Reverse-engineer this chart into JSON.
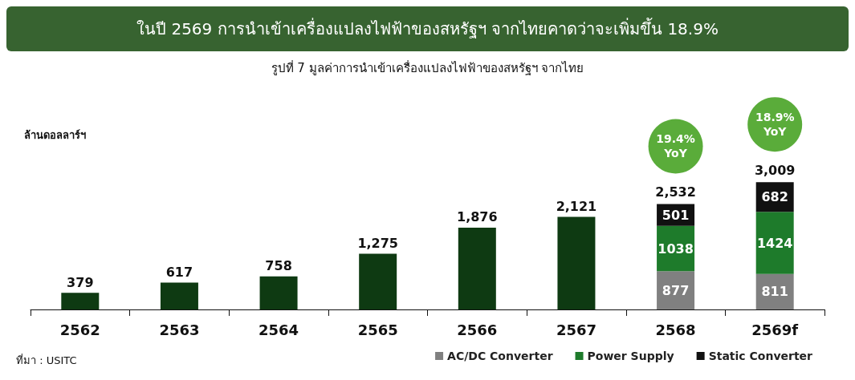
{
  "chart_data": {
    "type": "bar",
    "title": "ในปี 2569 การนำเข้าเครื่องแปลงไฟฟ้าของสหรัฐฯ จากไทยคาดว่าจะเพิ่มขึ้น 18.9%",
    "subtitle": "รูปที่ 7 มูลค่าการนำเข้าเครื่องแปลงไฟฟ้าของสหรัฐฯ จากไทย",
    "ylabel": "ล้านดอลลาร์ฯ",
    "categories": [
      "2562",
      "2563",
      "2564",
      "2565",
      "2566",
      "2567",
      "2568",
      "2569f"
    ],
    "stacked": true,
    "series": [
      {
        "color": "#0e3a12",
        "values": [
          379,
          617,
          758,
          1275,
          1876,
          2121,
          null,
          null
        ],
        "value_labels": [
          "379",
          "617",
          "758",
          "1,275",
          "1,876",
          "2,121",
          null,
          null
        ]
      },
      {
        "name": "AC/DC Converter",
        "color": "#808080",
        "values": [
          null,
          null,
          null,
          null,
          null,
          null,
          877,
          811
        ]
      },
      {
        "name": "Power Supply",
        "color": "#1e7b2b",
        "values": [
          null,
          null,
          null,
          null,
          null,
          null,
          1038,
          1424
        ]
      },
      {
        "name": "Static Converter",
        "color": "#111111",
        "values": [
          null,
          null,
          null,
          null,
          null,
          null,
          501,
          682
        ]
      }
    ],
    "data_labels": true,
    "annotations": [
      "2,532",
      "19.4%\nYoY",
      "3,009",
      "18.9%\nYoY",
      "ที่มา : USITC"
    ],
    "legend": "bottom right",
    "grid": false,
    "tick_labels": "x"
  }
}
